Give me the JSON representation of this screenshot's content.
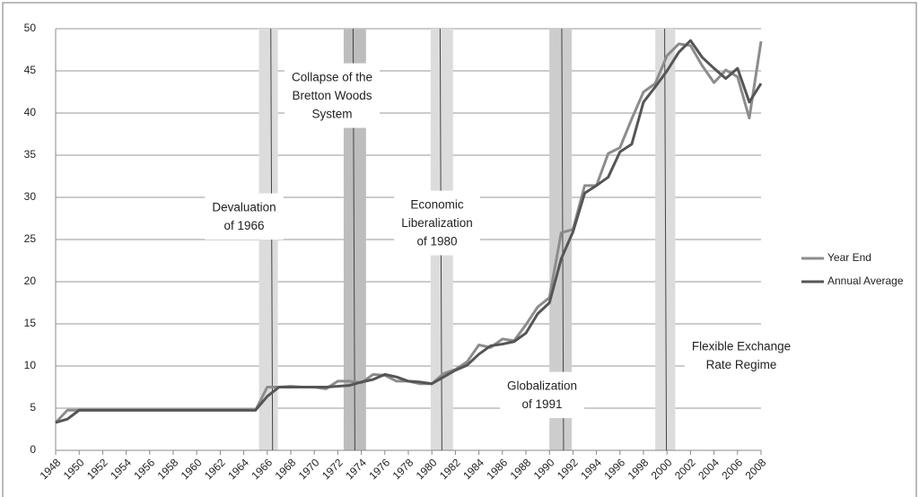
{
  "chart_data": {
    "type": "line",
    "x": [
      1948,
      1949,
      1950,
      1951,
      1952,
      1953,
      1954,
      1955,
      1956,
      1957,
      1958,
      1959,
      1960,
      1961,
      1962,
      1963,
      1964,
      1965,
      1966,
      1967,
      1968,
      1969,
      1970,
      1971,
      1972,
      1973,
      1974,
      1975,
      1976,
      1977,
      1978,
      1979,
      1980,
      1981,
      1982,
      1983,
      1984,
      1985,
      1986,
      1987,
      1988,
      1989,
      1990,
      1991,
      1992,
      1993,
      1994,
      1995,
      1996,
      1997,
      1998,
      1999,
      2000,
      2001,
      2002,
      2003,
      2004,
      2005,
      2006,
      2007,
      2008
    ],
    "series": [
      {
        "name": "Year End",
        "color": "#8c8c8c",
        "values": [
          3.3,
          4.76,
          4.76,
          4.76,
          4.76,
          4.76,
          4.76,
          4.76,
          4.76,
          4.76,
          4.76,
          4.76,
          4.76,
          4.76,
          4.76,
          4.76,
          4.76,
          4.76,
          7.5,
          7.5,
          7.6,
          7.5,
          7.5,
          7.3,
          8.2,
          8.2,
          8.0,
          9.0,
          8.9,
          8.2,
          8.2,
          7.9,
          7.9,
          9.1,
          9.6,
          10.5,
          12.5,
          12.2,
          13.2,
          13.0,
          14.9,
          17.0,
          18.1,
          25.8,
          26.2,
          31.4,
          31.4,
          35.2,
          35.9,
          39.3,
          42.5,
          43.5,
          46.8,
          48.2,
          48.0,
          45.6,
          43.6,
          45.1,
          44.3,
          39.4,
          48.5
        ]
      },
      {
        "name": "Annual Average",
        "color": "#555555",
        "values": [
          3.3,
          3.7,
          4.76,
          4.76,
          4.76,
          4.76,
          4.76,
          4.76,
          4.76,
          4.76,
          4.76,
          4.76,
          4.76,
          4.76,
          4.76,
          4.76,
          4.76,
          4.76,
          6.4,
          7.5,
          7.5,
          7.5,
          7.5,
          7.5,
          7.6,
          7.7,
          8.1,
          8.4,
          9.0,
          8.7,
          8.2,
          8.1,
          7.9,
          8.7,
          9.5,
          10.1,
          11.4,
          12.4,
          12.6,
          12.9,
          13.9,
          16.2,
          17.5,
          22.7,
          25.9,
          30.5,
          31.4,
          32.4,
          35.4,
          36.3,
          41.3,
          43.1,
          45.0,
          47.2,
          48.6,
          46.6,
          45.3,
          44.1,
          45.3,
          41.3,
          43.5
        ]
      }
    ],
    "xlim": [
      1948,
      2008
    ],
    "xticks": [
      1948,
      1950,
      1952,
      1954,
      1956,
      1958,
      1960,
      1962,
      1964,
      1966,
      1968,
      1970,
      1972,
      1974,
      1976,
      1978,
      1980,
      1982,
      1984,
      1986,
      1988,
      1990,
      1992,
      1994,
      1996,
      1998,
      2000,
      2002,
      2004,
      2006,
      2008
    ],
    "ylim": [
      0,
      50
    ],
    "yticks": [
      0,
      5,
      10,
      15,
      20,
      25,
      30,
      35,
      40,
      45,
      50
    ],
    "grid": true,
    "legend": "right",
    "events": [
      {
        "lines": [
          "Devaluation",
          "of 1966"
        ],
        "x": 1966.3,
        "band": [
          1965.3,
          1966.9
        ],
        "band_color": "#dcdcdc"
      },
      {
        "lines": [
          "Collapse of the",
          "Bretton Woods",
          "System"
        ],
        "x": 1973.3,
        "band": [
          1972.5,
          1974.4
        ],
        "band_color": "#bdbdbd"
      },
      {
        "lines": [
          "Economic",
          "Liberalization",
          "of 1980"
        ],
        "x": 1980.7,
        "band": [
          1979.9,
          1981.8
        ],
        "band_color": "#dcdcdc"
      },
      {
        "lines": [
          "Globalization",
          "of 1991"
        ],
        "x": 1991.05,
        "band": [
          1990.0,
          1991.9
        ],
        "band_color": "#cdcdcd"
      },
      {
        "lines": [
          "Flexible Exchange",
          "Rate Regime"
        ],
        "x": 1999.8,
        "band": [
          1999.0,
          2000.7
        ],
        "band_color": "#dcdcdc"
      }
    ]
  }
}
